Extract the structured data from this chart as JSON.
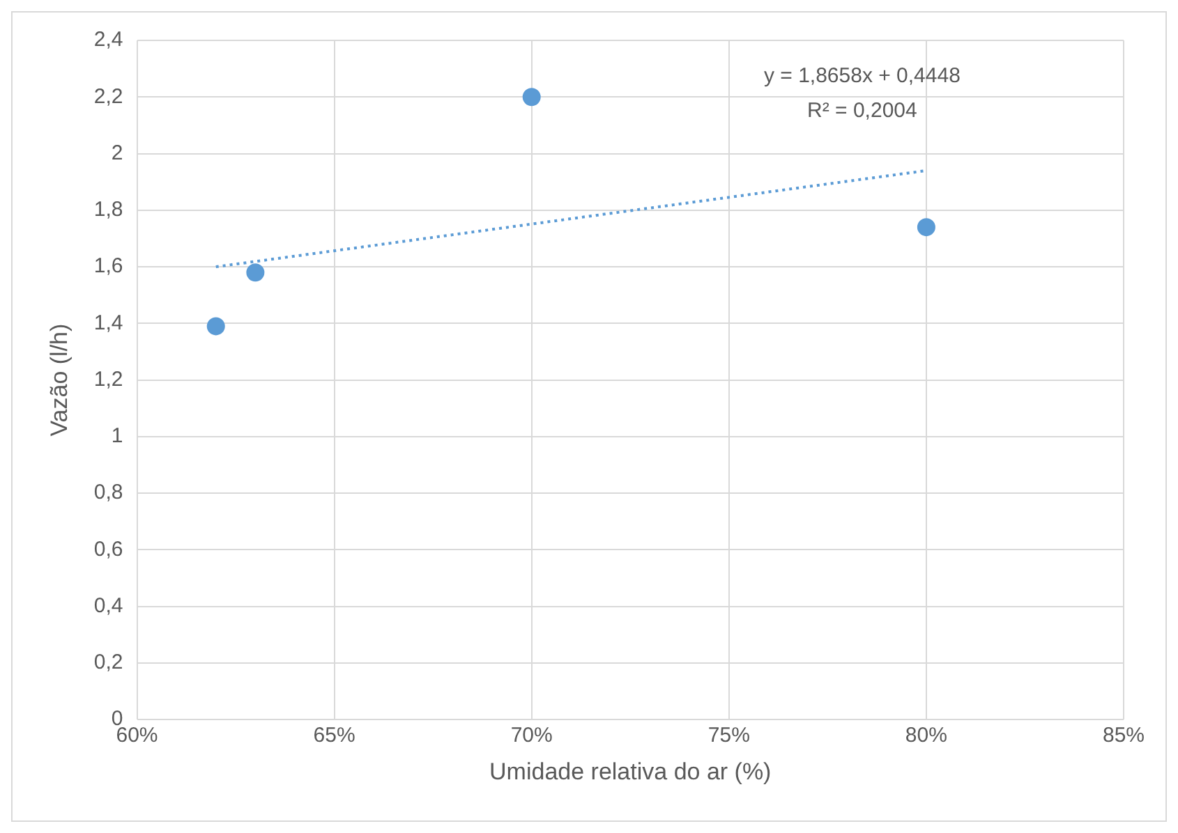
{
  "chart_data": {
    "type": "scatter",
    "xlabel": "Umidade relativa do ar (%)",
    "ylabel": "Vazão (l/h)",
    "marker": "circle",
    "series": [
      {
        "color": "#5b9bd5",
        "x": [
          62,
          63,
          70,
          80
        ],
        "values": [
          1.39,
          1.58,
          2.2,
          1.74
        ]
      },
      {
        "type": "line",
        "color": "#5b9bd5",
        "line_style": "dotted",
        "marker": "none",
        "x": [
          62,
          80
        ],
        "values": [
          1.6,
          1.94
        ]
      }
    ],
    "xlim": [
      60,
      85
    ],
    "xticks": [
      {
        "value": 60,
        "label": "60%"
      },
      {
        "value": 65,
        "label": "65%"
      },
      {
        "value": 70,
        "label": "70%"
      },
      {
        "value": 75,
        "label": "75%"
      },
      {
        "value": 80,
        "label": "80%"
      },
      {
        "value": 85,
        "label": "85%"
      }
    ],
    "ylim": [
      0,
      2.4
    ],
    "yticks": [
      0,
      {
        "value": 0.2,
        "label": "0,2"
      },
      {
        "value": 0.4,
        "label": "0,4"
      },
      {
        "value": 0.6,
        "label": "0,6"
      },
      {
        "value": 0.8,
        "label": "0,8"
      },
      1,
      {
        "value": 1.2,
        "label": "1,2"
      },
      {
        "value": 1.4,
        "label": "1,4"
      },
      {
        "value": 1.6,
        "label": "1,6"
      },
      {
        "value": 1.8,
        "label": "1,8"
      },
      2,
      {
        "value": 2.2,
        "label": "2,2"
      },
      {
        "value": 2.4,
        "label": "2,4"
      }
    ],
    "grid": true,
    "legend": false,
    "annotations": [
      "y = 1,8658x + 0,4448",
      "R² = 0,2004"
    ]
  }
}
